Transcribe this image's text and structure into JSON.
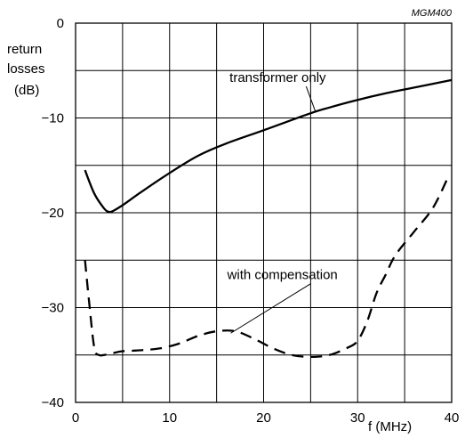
{
  "chart_data": {
    "type": "line",
    "code": "MGM400",
    "ylabel_lines": [
      "return",
      "losses",
      "(dB)"
    ],
    "xlabel": "f (MHz)",
    "xlim": [
      0,
      40
    ],
    "ylim": [
      -40,
      0
    ],
    "x_ticks": [
      0,
      10,
      20,
      30,
      40
    ],
    "x_tick_labels": [
      "0",
      "10",
      "20",
      "30",
      "40"
    ],
    "y_ticks": [
      0,
      -10,
      -20,
      -30,
      -40
    ],
    "y_tick_labels": [
      "0",
      "−10",
      "−20",
      "−30",
      "−40"
    ],
    "x_grid": [
      0,
      5,
      10,
      15,
      20,
      25,
      30,
      35,
      40
    ],
    "y_grid": [
      0,
      -5,
      -10,
      -15,
      -20,
      -25,
      -30,
      -35,
      -40
    ],
    "grid": true,
    "series": [
      {
        "name": "transformer only",
        "style": "solid",
        "x": [
          1,
          2,
          3,
          3.5,
          4,
          5,
          7,
          10,
          13,
          16,
          20,
          25,
          27,
          30,
          33,
          36,
          40
        ],
        "y": [
          -15.5,
          -18.0,
          -19.5,
          -19.9,
          -19.8,
          -19.2,
          -17.8,
          -15.8,
          -14.0,
          -12.7,
          -11.3,
          -9.5,
          -8.9,
          -8.1,
          -7.4,
          -6.8,
          -6.0
        ]
      },
      {
        "name": "with compensation",
        "style": "dashed",
        "x": [
          1,
          1.5,
          2,
          2.5,
          3,
          4,
          5,
          7,
          9,
          11,
          13,
          15,
          17,
          19,
          21,
          23,
          25,
          27,
          29,
          30,
          31,
          32,
          33,
          34,
          36,
          38,
          39.5
        ],
        "y": [
          -25.0,
          -30.0,
          -34.3,
          -35.0,
          -35.0,
          -34.8,
          -34.6,
          -34.5,
          -34.3,
          -33.8,
          -33.0,
          -32.5,
          -32.5,
          -33.3,
          -34.3,
          -35.0,
          -35.2,
          -35.0,
          -34.2,
          -33.5,
          -31.5,
          -28.5,
          -26.5,
          -24.5,
          -22.0,
          -19.5,
          -16.5
        ]
      }
    ],
    "annotations": [
      {
        "text": "transformer only",
        "series_index": 0,
        "arrow_to": [
          25.5,
          -9.3
        ],
        "label_at": [
          21.5,
          -6.2
        ]
      },
      {
        "text": "with compensation",
        "series_index": 1,
        "arrow_to": [
          16.5,
          -32.7
        ],
        "label_at": [
          22.0,
          -27.0
        ]
      }
    ]
  }
}
